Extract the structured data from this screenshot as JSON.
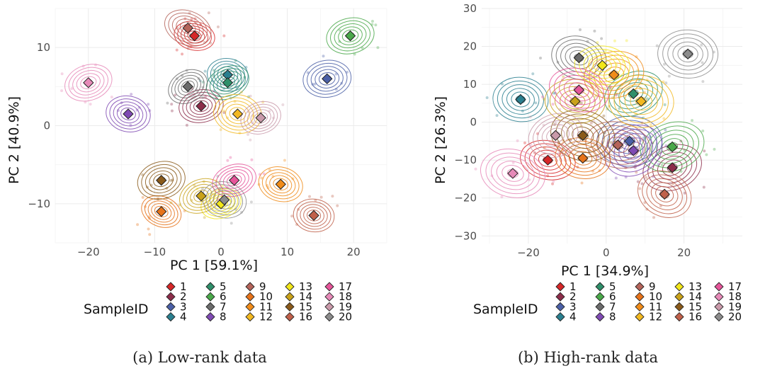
{
  "colors": {
    "1": "#d62728",
    "2": "#8c2d4a",
    "3": "#4a5fa6",
    "4": "#2a7f8f",
    "5": "#2f8f6a",
    "6": "#4aa84a",
    "7": "#6b6b6b",
    "8": "#7f4ab3",
    "9": "#b5645a",
    "10": "#e6731a",
    "11": "#f08c1a",
    "12": "#f2b821",
    "13": "#f2e61a",
    "14": "#c9a21a",
    "15": "#8a5a1a",
    "16": "#c0604a",
    "17": "#e6559a",
    "18": "#e68ab8",
    "19": "#c99aaa",
    "20": "#8c8c8c"
  },
  "legend": {
    "title": "SampleID",
    "entries": [
      "1",
      "2",
      "3",
      "4",
      "5",
      "6",
      "7",
      "8",
      "9",
      "10",
      "11",
      "12",
      "13",
      "14",
      "15",
      "16",
      "17",
      "18",
      "19",
      "20"
    ]
  },
  "chart_data": [
    {
      "type": "scatter",
      "caption": "(a) Low-rank data",
      "xlabel": "PC 1 [59.1%]",
      "ylabel": "PC 2 [40.9%]",
      "xlim": [
        -25,
        25
      ],
      "ylim": [
        -15,
        15
      ],
      "xticks": [
        -20,
        -10,
        0,
        10,
        20
      ],
      "yticks": [
        -10,
        0,
        10
      ],
      "grid": true,
      "legend_position": "bottom",
      "points": [
        {
          "id": "1",
          "x": -4,
          "y": 11.5
        },
        {
          "id": "2",
          "x": -3,
          "y": 2.5
        },
        {
          "id": "3",
          "x": 16,
          "y": 6
        },
        {
          "id": "4",
          "x": 1,
          "y": 6.5
        },
        {
          "id": "5",
          "x": 1,
          "y": 5.5
        },
        {
          "id": "6",
          "x": 19.5,
          "y": 11.5
        },
        {
          "id": "7",
          "x": -5,
          "y": 5
        },
        {
          "id": "8",
          "x": -14,
          "y": 1.5
        },
        {
          "id": "9",
          "x": -5,
          "y": 12.5
        },
        {
          "id": "10",
          "x": -9,
          "y": -11
        },
        {
          "id": "11",
          "x": 9,
          "y": -7.5
        },
        {
          "id": "12",
          "x": 2.5,
          "y": 1.5
        },
        {
          "id": "13",
          "x": 0,
          "y": -10
        },
        {
          "id": "14",
          "x": -3,
          "y": -9
        },
        {
          "id": "15",
          "x": -9,
          "y": -7
        },
        {
          "id": "16",
          "x": 14,
          "y": -11.5
        },
        {
          "id": "17",
          "x": 2,
          "y": -7
        },
        {
          "id": "18",
          "x": -20,
          "y": 5.5
        },
        {
          "id": "19",
          "x": 6,
          "y": 1
        },
        {
          "id": "20",
          "x": 0.5,
          "y": -9.5
        }
      ]
    },
    {
      "type": "scatter",
      "caption": "(b) High-rank data",
      "xlabel": "PC 1 [34.9%]",
      "ylabel": "PC 2 [26.3%]",
      "xlim": [
        -32,
        35
      ],
      "ylim": [
        -32,
        30
      ],
      "xticks": [
        -20,
        0,
        20
      ],
      "yticks": [
        -30,
        -20,
        -10,
        0,
        10,
        20,
        30
      ],
      "grid": true,
      "legend_position": "bottom",
      "points": [
        {
          "id": "1",
          "x": -15,
          "y": -10
        },
        {
          "id": "2",
          "x": 17,
          "y": -12
        },
        {
          "id": "3",
          "x": 6,
          "y": -5
        },
        {
          "id": "4",
          "x": -22,
          "y": 6
        },
        {
          "id": "5",
          "x": 7,
          "y": 7.5
        },
        {
          "id": "6",
          "x": 17,
          "y": -6.5
        },
        {
          "id": "7",
          "x": -7,
          "y": 17
        },
        {
          "id": "8",
          "x": 7,
          "y": -7.5
        },
        {
          "id": "9",
          "x": 3,
          "y": -6
        },
        {
          "id": "10",
          "x": -6,
          "y": -9.5
        },
        {
          "id": "11",
          "x": 2,
          "y": 12.5
        },
        {
          "id": "12",
          "x": 9,
          "y": 5.5
        },
        {
          "id": "13",
          "x": -1,
          "y": 15
        },
        {
          "id": "14",
          "x": -8,
          "y": 5.5
        },
        {
          "id": "15",
          "x": -6,
          "y": -3.5
        },
        {
          "id": "16",
          "x": 15,
          "y": -19
        },
        {
          "id": "17",
          "x": -7,
          "y": 8.5
        },
        {
          "id": "18",
          "x": -24,
          "y": -13.5
        },
        {
          "id": "19",
          "x": -13,
          "y": -3.5
        },
        {
          "id": "20",
          "x": 21,
          "y": 18
        }
      ]
    }
  ]
}
